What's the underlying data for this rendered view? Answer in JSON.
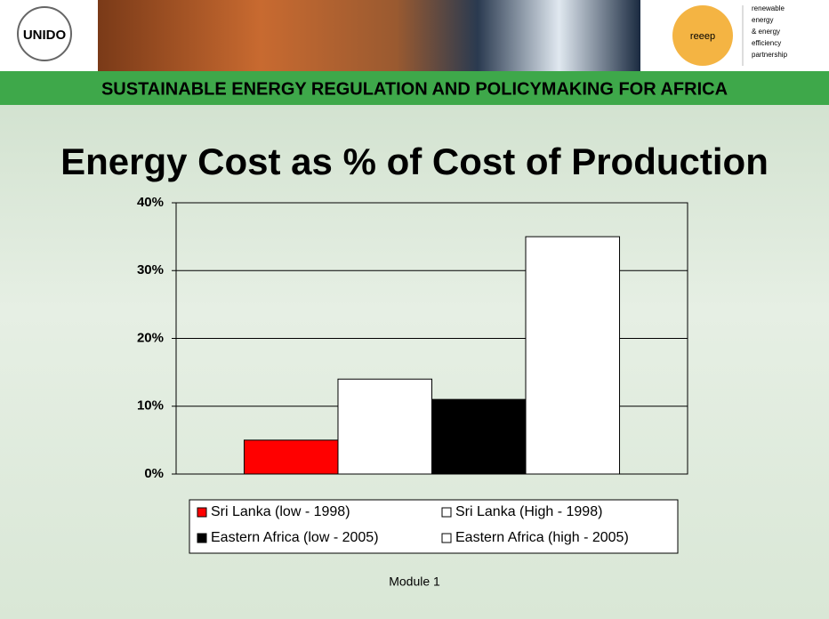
{
  "logo_left": "UNIDO",
  "logo_right": {
    "mark": "reeep",
    "text": [
      "renewable",
      "energy",
      "& energy",
      "efficiency",
      "partnership"
    ]
  },
  "banner": "SUSTAINABLE ENERGY REGULATION AND POLICYMAKING FOR AFRICA",
  "footer": "Module 1",
  "chart_data": {
    "type": "bar",
    "title": "Energy Cost as % of Cost of Production",
    "categories": [
      null
    ],
    "series": [
      {
        "name": "Sri Lanka (low - 1998)",
        "color": "#ff0000",
        "values": [
          5
        ]
      },
      {
        "name": "Sri Lanka (High - 1998)",
        "color": "#ffffff",
        "values": [
          14
        ]
      },
      {
        "name": "Eastern Africa (low - 2005)",
        "color": "#000000",
        "values": [
          11
        ]
      },
      {
        "name": "Eastern Africa (high - 2005)",
        "color": "#ffffff",
        "values": [
          35
        ]
      }
    ],
    "ylim": [
      0,
      40
    ],
    "yticks": [
      {
        "value": 0,
        "label": "0%"
      },
      {
        "value": 10,
        "label": "10%"
      },
      {
        "value": 20,
        "label": "20%"
      },
      {
        "value": 30,
        "label": "30%"
      },
      {
        "value": 40,
        "label": "40%"
      }
    ],
    "grid": true,
    "legend": "bottom"
  }
}
